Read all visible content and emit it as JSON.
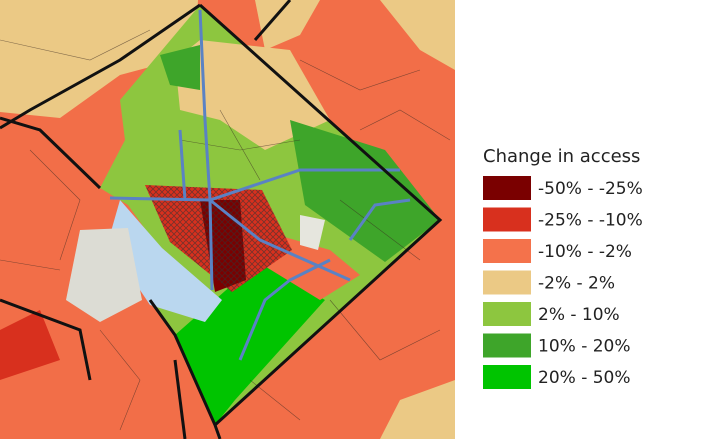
{
  "legend": {
    "title": "Change in access",
    "items": [
      {
        "label": "-50% - -25%",
        "color": "#7a0000"
      },
      {
        "label": "-25% - -10%",
        "color": "#d8301e"
      },
      {
        "label": "-10% - -2%",
        "color": "#f4724b"
      },
      {
        "label": "-2% - 2%",
        "color": "#ebc985"
      },
      {
        "label": "2% - 10%",
        "color": "#8dc63f"
      },
      {
        "label": "10% - 20%",
        "color": "#3ea52a"
      },
      {
        "label": "20% - 50%",
        "color": "#00c400"
      }
    ]
  }
}
